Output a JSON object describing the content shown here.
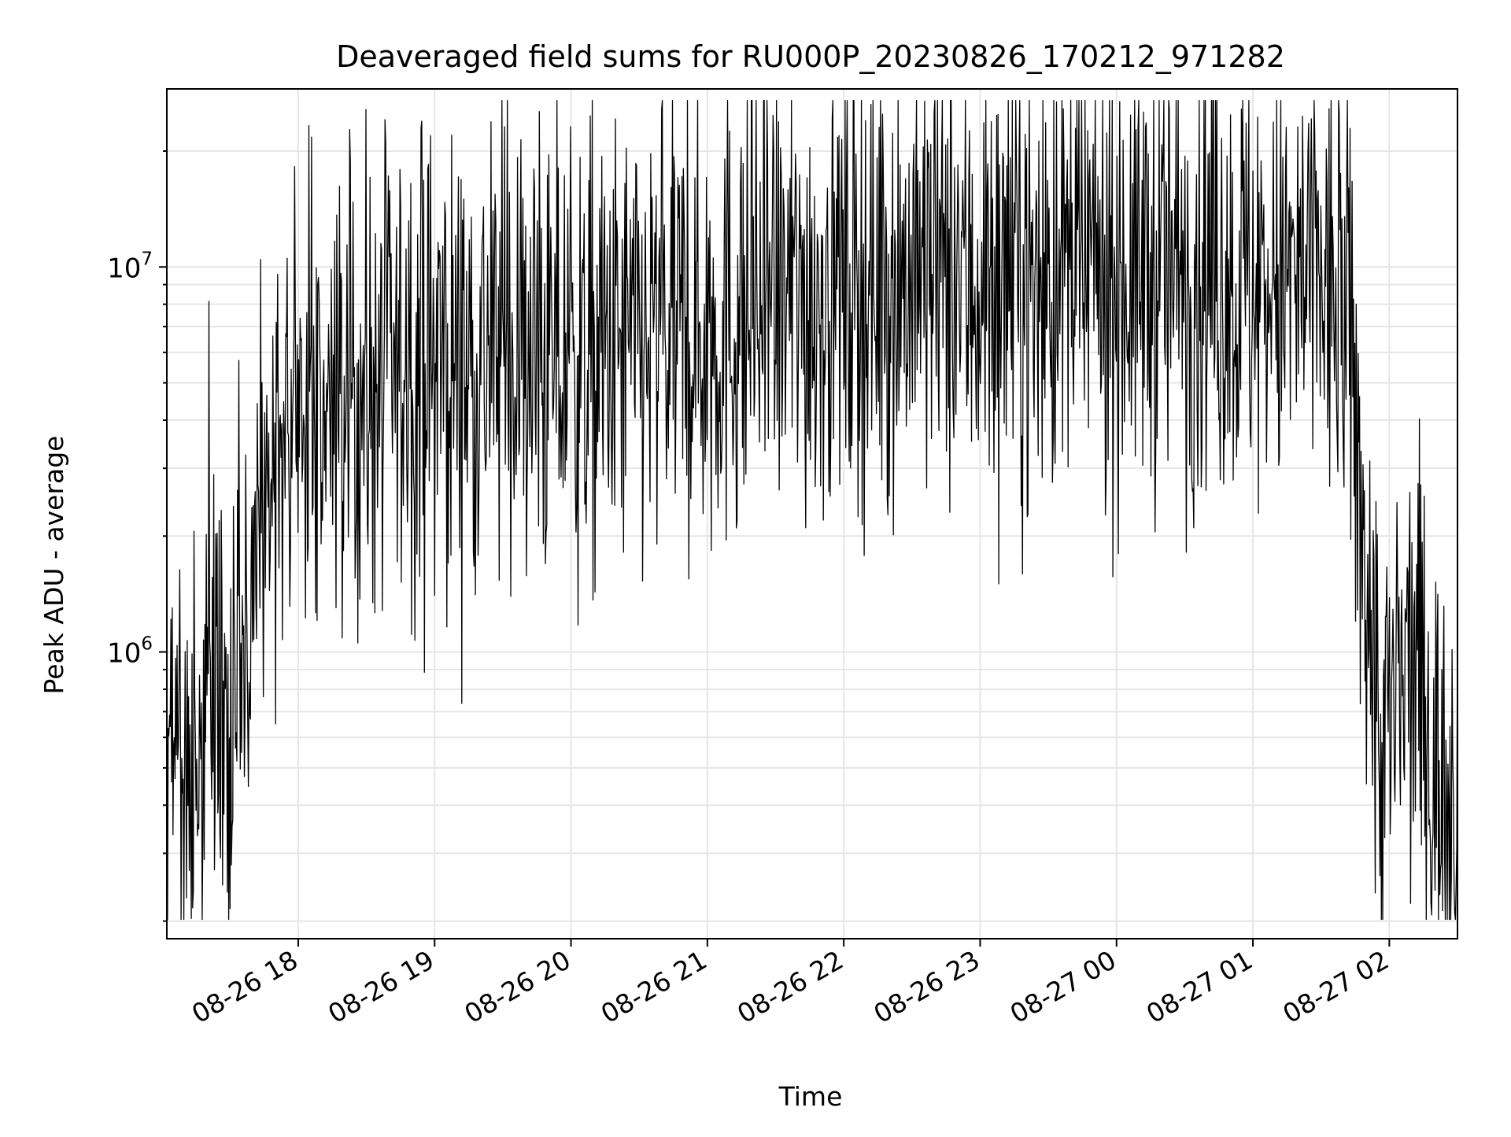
{
  "chart_data": {
    "type": "line",
    "title": "Deaveraged field sums for RU000P_20230826_170212_971282",
    "xlabel": "Time",
    "ylabel": "Peak ADU - average",
    "x_range": [
      "2023-08-26 17:02:12",
      "2023-08-27 02:30:00"
    ],
    "y_scale": "log",
    "y_range": [
      180000,
      29000000
    ],
    "grid": true,
    "line_color": "#000000",
    "grid_color": "#e6e6e6",
    "x_ticks": [
      {
        "value": "2023-08-26 18:00",
        "label": "08-26 18"
      },
      {
        "value": "2023-08-26 19:00",
        "label": "08-26 19"
      },
      {
        "value": "2023-08-26 20:00",
        "label": "08-26 20"
      },
      {
        "value": "2023-08-26 21:00",
        "label": "08-26 21"
      },
      {
        "value": "2023-08-26 22:00",
        "label": "08-26 22"
      },
      {
        "value": "2023-08-26 23:00",
        "label": "08-26 23"
      },
      {
        "value": "2023-08-27 00:00",
        "label": "08-27 00"
      },
      {
        "value": "2023-08-27 01:00",
        "label": "08-27 01"
      },
      {
        "value": "2023-08-27 02:00",
        "label": "08-27 02"
      }
    ],
    "y_ticks": [
      {
        "value": 1000000,
        "base": "10",
        "exp": "6"
      },
      {
        "value": 10000000,
        "base": "10",
        "exp": "7"
      }
    ],
    "series": [
      {
        "name": "",
        "trend": [
          {
            "t": "2023-08-26 17:02",
            "y": 500000
          },
          {
            "t": "2023-08-26 17:10",
            "y": 480000
          },
          {
            "t": "2023-08-26 17:20",
            "y": 520000
          },
          {
            "t": "2023-08-26 17:30",
            "y": 650000
          },
          {
            "t": "2023-08-26 17:36",
            "y": 1000000
          },
          {
            "t": "2023-08-26 17:45",
            "y": 2200000
          },
          {
            "t": "2023-08-26 18:00",
            "y": 3800000
          },
          {
            "t": "2023-08-26 18:30",
            "y": 4800000
          },
          {
            "t": "2023-08-26 19:00",
            "y": 5500000
          },
          {
            "t": "2023-08-26 19:30",
            "y": 6000000
          },
          {
            "t": "2023-08-26 20:00",
            "y": 5300000
          },
          {
            "t": "2023-08-26 20:30",
            "y": 6200000
          },
          {
            "t": "2023-08-26 21:00",
            "y": 6800000
          },
          {
            "t": "2023-08-26 21:30",
            "y": 8000000
          },
          {
            "t": "2023-08-26 22:00",
            "y": 9000000
          },
          {
            "t": "2023-08-26 22:30",
            "y": 9500000
          },
          {
            "t": "2023-08-26 23:00",
            "y": 9000000
          },
          {
            "t": "2023-08-26 23:30",
            "y": 9300000
          },
          {
            "t": "2023-08-27 00:00",
            "y": 9500000
          },
          {
            "t": "2023-08-27 00:30",
            "y": 9800000
          },
          {
            "t": "2023-08-27 01:00",
            "y": 9000000
          },
          {
            "t": "2023-08-27 01:30",
            "y": 9000000
          },
          {
            "t": "2023-08-27 01:42",
            "y": 7000000
          },
          {
            "t": "2023-08-27 01:50",
            "y": 1500000
          },
          {
            "t": "2023-08-27 01:56",
            "y": 550000
          },
          {
            "t": "2023-08-27 02:05",
            "y": 750000
          },
          {
            "t": "2023-08-27 02:12",
            "y": 1000000
          },
          {
            "t": "2023-08-27 02:20",
            "y": 450000
          },
          {
            "t": "2023-08-27 02:30",
            "y": 500000
          }
        ],
        "scatter_log10": 0.3
      }
    ]
  }
}
